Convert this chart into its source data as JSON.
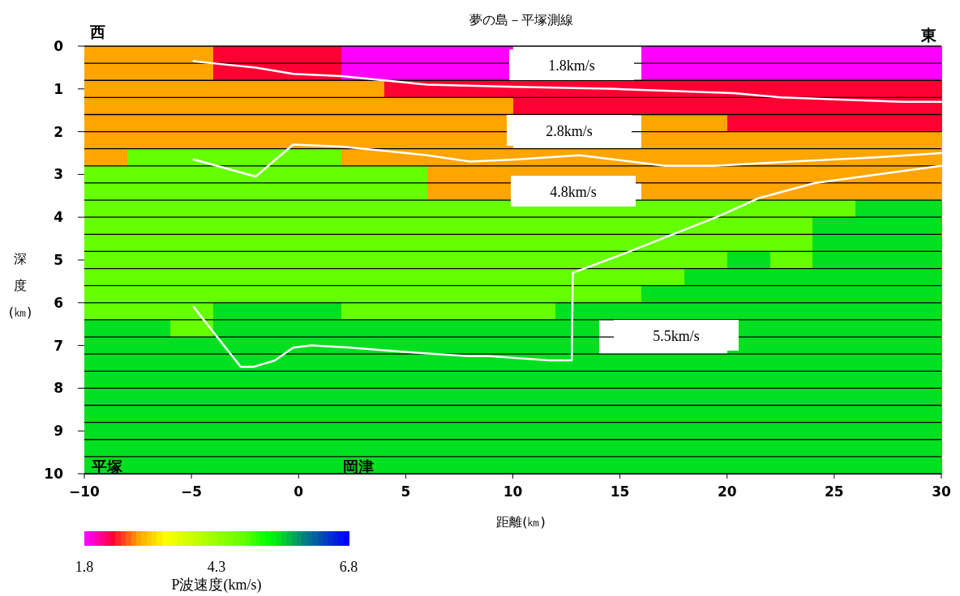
{
  "chart_data": {
    "type": "heatmap",
    "title": "夢の島－平塚測線",
    "xlabel": "距離(㎞)",
    "ylabel": "深度(㎞)",
    "clabel": "P波速度(km/s)",
    "x": [
      -9,
      -7,
      -5,
      -3,
      -1,
      1,
      3,
      5,
      7,
      9,
      11,
      13,
      15,
      17,
      19,
      21,
      23,
      25,
      27,
      29
    ],
    "y": [
      0.2,
      0.6,
      1.0,
      1.4,
      1.8,
      2.2,
      2.6,
      3.0,
      3.4,
      3.8,
      4.2,
      4.6,
      5.0,
      5.4,
      5.8,
      6.2,
      6.6,
      7.0,
      7.4,
      7.8,
      8.2,
      8.6,
      9.0,
      9.4,
      9.8
    ],
    "xlim": [
      -10,
      30
    ],
    "ylim": [
      10,
      0
    ],
    "xticks": [
      {
        "value": -10,
        "label": "−10"
      },
      {
        "value": -5,
        "label": "−5"
      },
      0,
      5,
      10,
      15,
      20,
      25,
      30
    ],
    "yticks": [
      0,
      1,
      2,
      3,
      4,
      5,
      6,
      7,
      8,
      9,
      10
    ],
    "clim": [
      1.8,
      6.8
    ],
    "cticks": [
      1.8,
      4.3,
      6.8
    ],
    "cells": [
      [
        2.8,
        2.8,
        2.8,
        2.3,
        2.3,
        2.3,
        1.8,
        1.8,
        1.8,
        1.8,
        null,
        null,
        null,
        1.8,
        1.8,
        1.8,
        1.8,
        1.8,
        1.8,
        1.8
      ],
      [
        2.8,
        2.8,
        2.8,
        2.3,
        2.3,
        2.3,
        1.8,
        1.8,
        1.8,
        1.8,
        null,
        null,
        null,
        1.8,
        1.8,
        1.8,
        1.8,
        1.8,
        1.8,
        1.8
      ],
      [
        2.8,
        2.8,
        2.8,
        2.8,
        2.8,
        2.8,
        2.8,
        2.3,
        2.3,
        2.3,
        2.3,
        2.3,
        2.3,
        2.3,
        2.3,
        2.3,
        2.3,
        2.3,
        2.3,
        2.3
      ],
      [
        2.8,
        2.8,
        2.8,
        2.8,
        2.8,
        2.8,
        2.8,
        2.8,
        2.8,
        2.8,
        2.3,
        2.3,
        2.3,
        2.3,
        2.3,
        2.3,
        2.3,
        2.3,
        2.3,
        2.3
      ],
      [
        2.8,
        2.8,
        2.8,
        2.8,
        2.8,
        2.8,
        2.8,
        2.8,
        2.8,
        2.8,
        null,
        null,
        null,
        2.8,
        2.8,
        2.3,
        2.3,
        2.3,
        2.3,
        2.3
      ],
      [
        2.8,
        2.8,
        2.8,
        2.8,
        2.8,
        2.8,
        2.8,
        2.8,
        2.8,
        2.8,
        null,
        null,
        null,
        2.8,
        2.8,
        2.8,
        2.8,
        2.8,
        2.8,
        2.8
      ],
      [
        2.8,
        4.8,
        4.8,
        4.8,
        4.8,
        4.8,
        2.8,
        2.8,
        2.8,
        2.8,
        2.8,
        2.8,
        2.8,
        2.8,
        2.8,
        2.8,
        2.8,
        2.8,
        2.8,
        2.8
      ],
      [
        4.8,
        4.8,
        4.8,
        4.8,
        4.8,
        4.8,
        4.8,
        4.8,
        2.8,
        2.8,
        2.8,
        2.8,
        2.8,
        2.8,
        2.8,
        2.8,
        2.8,
        2.8,
        2.8,
        2.8
      ],
      [
        4.8,
        4.8,
        4.8,
        4.8,
        4.8,
        4.8,
        4.8,
        4.8,
        2.8,
        2.8,
        null,
        null,
        null,
        2.8,
        2.8,
        2.8,
        2.8,
        2.8,
        2.8,
        2.8
      ],
      [
        4.8,
        4.8,
        4.8,
        4.8,
        4.8,
        4.8,
        4.8,
        4.8,
        4.8,
        4.8,
        4.8,
        4.8,
        4.8,
        4.8,
        4.8,
        4.8,
        4.8,
        4.8,
        5.5,
        5.5
      ],
      [
        4.8,
        4.8,
        4.8,
        4.8,
        4.8,
        4.8,
        4.8,
        4.8,
        4.8,
        4.8,
        4.8,
        4.8,
        4.8,
        4.8,
        4.8,
        4.8,
        4.8,
        5.5,
        5.5,
        5.5
      ],
      [
        4.8,
        4.8,
        4.8,
        4.8,
        4.8,
        4.8,
        4.8,
        4.8,
        4.8,
        4.8,
        4.8,
        4.8,
        4.8,
        4.8,
        4.8,
        4.8,
        4.8,
        5.5,
        5.5,
        5.5
      ],
      [
        4.8,
        4.8,
        4.8,
        4.8,
        4.8,
        4.8,
        4.8,
        4.8,
        4.8,
        4.8,
        4.8,
        4.8,
        4.8,
        4.8,
        4.8,
        5.5,
        4.8,
        5.5,
        5.5,
        5.5
      ],
      [
        4.8,
        4.8,
        4.8,
        4.8,
        4.8,
        4.8,
        4.8,
        4.8,
        4.8,
        4.8,
        4.8,
        4.8,
        4.8,
        4.8,
        5.5,
        5.5,
        5.5,
        5.5,
        5.5,
        5.5
      ],
      [
        4.8,
        4.8,
        4.8,
        4.8,
        4.8,
        4.8,
        4.8,
        4.8,
        4.8,
        4.8,
        4.8,
        4.8,
        4.8,
        5.5,
        5.5,
        5.5,
        5.5,
        5.5,
        5.5,
        5.5
      ],
      [
        4.8,
        4.8,
        4.8,
        5.5,
        5.5,
        5.5,
        4.8,
        4.8,
        4.8,
        4.8,
        4.8,
        5.5,
        5.5,
        5.5,
        5.5,
        5.5,
        5.5,
        5.5,
        5.5,
        5.5
      ],
      [
        5.5,
        5.5,
        4.8,
        5.5,
        5.5,
        5.5,
        5.5,
        5.5,
        5.5,
        5.5,
        5.5,
        5.5,
        null,
        null,
        null,
        5.5,
        5.5,
        5.5,
        5.5,
        5.5
      ],
      [
        5.5,
        5.5,
        5.5,
        5.5,
        5.5,
        5.5,
        5.5,
        5.5,
        5.5,
        5.5,
        5.5,
        5.5,
        null,
        null,
        null,
        5.5,
        5.5,
        5.5,
        5.5,
        5.5
      ],
      [
        5.5,
        5.5,
        5.5,
        5.5,
        5.5,
        5.5,
        5.5,
        5.5,
        5.5,
        5.5,
        5.5,
        5.5,
        5.5,
        5.5,
        5.5,
        5.5,
        5.5,
        5.5,
        5.5,
        5.5
      ],
      [
        5.5,
        5.5,
        5.5,
        5.5,
        5.5,
        5.5,
        5.5,
        5.5,
        5.5,
        5.5,
        5.5,
        5.5,
        5.5,
        5.5,
        5.5,
        5.5,
        5.5,
        5.5,
        5.5,
        5.5
      ],
      [
        5.5,
        5.5,
        5.5,
        5.5,
        5.5,
        5.5,
        5.5,
        5.5,
        5.5,
        5.5,
        5.5,
        5.5,
        5.5,
        5.5,
        5.5,
        5.5,
        5.5,
        5.5,
        5.5,
        5.5
      ],
      [
        5.5,
        5.5,
        5.5,
        5.5,
        5.5,
        5.5,
        5.5,
        5.5,
        5.5,
        5.5,
        5.5,
        5.5,
        5.5,
        5.5,
        5.5,
        5.5,
        5.5,
        5.5,
        5.5,
        5.5
      ],
      [
        5.5,
        5.5,
        5.5,
        5.5,
        5.5,
        5.5,
        5.5,
        5.5,
        5.5,
        5.5,
        5.5,
        5.5,
        5.5,
        5.5,
        5.5,
        5.5,
        5.5,
        5.5,
        5.5,
        5.5
      ],
      [
        5.5,
        5.5,
        5.5,
        5.5,
        5.5,
        5.5,
        5.5,
        5.5,
        5.5,
        5.5,
        5.5,
        5.5,
        5.5,
        5.5,
        5.5,
        5.5,
        5.5,
        5.5,
        5.5,
        5.5
      ],
      [
        5.5,
        5.5,
        5.5,
        5.5,
        5.5,
        5.5,
        5.5,
        5.5,
        5.5,
        5.5,
        5.5,
        5.5,
        5.5,
        5.5,
        5.5,
        5.5,
        5.5,
        5.5,
        5.5,
        5.5
      ]
    ],
    "series": [
      {
        "type": "line",
        "color": "#ffffff",
        "x": [
          -4.9,
          -4,
          -2,
          -0.25,
          2,
          4,
          6,
          10.1,
          14.8,
          20.3,
          22.5,
          28.2,
          30
        ],
        "values": [
          0.35,
          0.4,
          0.5,
          0.65,
          0.7,
          0.8,
          0.9,
          0.95,
          1.0,
          1.1,
          1.2,
          1.3,
          1.3
        ]
      },
      {
        "type": "line",
        "color": "#ffffff",
        "x": [
          -4.9,
          -2,
          -0.25,
          2,
          4,
          6,
          8,
          10.1,
          13.1,
          17.1,
          19.4,
          23,
          27,
          30
        ],
        "values": [
          2.65,
          3.05,
          2.3,
          2.35,
          2.45,
          2.55,
          2.7,
          2.65,
          2.55,
          2.8,
          2.8,
          2.7,
          2.6,
          2.5
        ]
      },
      {
        "type": "line",
        "color": "#ffffff",
        "x": [
          -4.9,
          -2.7,
          -2.1,
          -1.1,
          -0.25,
          0.6,
          2.4,
          4.9,
          7.9,
          8.9,
          11.7,
          12.75,
          12.8,
          15.2,
          19.5,
          21.5,
          24.1,
          27,
          30
        ],
        "values": [
          6.1,
          7.5,
          7.5,
          7.35,
          7.05,
          7.0,
          7.05,
          7.15,
          7.25,
          7.25,
          7.35,
          7.35,
          5.3,
          4.85,
          4.0,
          3.55,
          3.2,
          3.0,
          2.8
        ]
      }
    ],
    "grid": "y",
    "annotations": [
      "西",
      "東",
      "平塚",
      "岡津",
      "1.8km/s",
      "2.8km/s",
      "4.8km/s",
      "5.5km/s"
    ]
  }
}
